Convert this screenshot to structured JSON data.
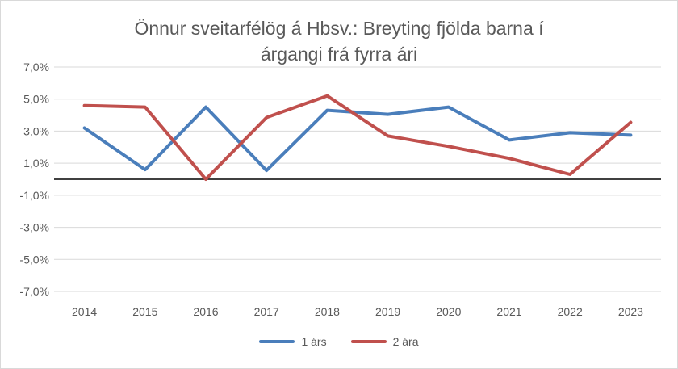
{
  "chart_data": {
    "type": "line",
    "title_lines": [
      "Önnur sveitarfélög á Hbsv.: Breyting fjölda barna í",
      "árgangi frá fyrra ári"
    ],
    "categories": [
      "2014",
      "2015",
      "2016",
      "2017",
      "2018",
      "2019",
      "2020",
      "2021",
      "2022",
      "2023"
    ],
    "series": [
      {
        "name": "1 árs",
        "color": "#4a7ebb",
        "values": [
          3.2,
          0.6,
          4.5,
          0.55,
          4.3,
          4.05,
          4.5,
          2.45,
          2.9,
          2.75
        ]
      },
      {
        "name": "2 ára",
        "color": "#c0504d",
        "values": [
          4.6,
          4.5,
          0.0,
          3.85,
          5.2,
          2.7,
          2.05,
          1.3,
          0.3,
          3.55
        ]
      }
    ],
    "ylim": [
      -7,
      7
    ],
    "yticks": [
      7,
      5,
      3,
      1,
      -1,
      -3,
      -5,
      -7
    ],
    "ytick_labels": [
      "7,0%",
      "5,0%",
      "3,0%",
      "1,0%",
      "-1,0%",
      "-3,0%",
      "-5,0%",
      "-7,0%"
    ],
    "grid": true,
    "legend": "bottom",
    "zero_line": true
  }
}
